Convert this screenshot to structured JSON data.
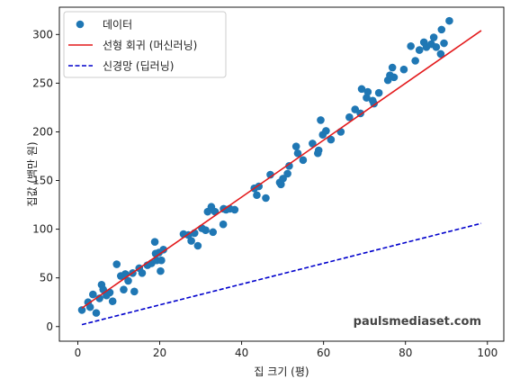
{
  "chart_data": {
    "type": "scatter",
    "xlabel": "집 크기 (평)",
    "ylabel": "집값 (백만 원)",
    "xlim": [
      -4.5,
      104
    ],
    "ylim": [
      -15,
      328
    ],
    "xticks": [
      0,
      20,
      40,
      60,
      80,
      100
    ],
    "yticks": [
      0,
      50,
      100,
      150,
      200,
      250,
      300
    ],
    "grid": false,
    "legend_position": "top-left",
    "series": [
      {
        "name": "데이터",
        "kind": "scatter",
        "color": "#1f77b4",
        "points": [
          [
            1,
            17
          ],
          [
            2.5,
            25
          ],
          [
            3,
            20
          ],
          [
            3.7,
            33
          ],
          [
            4.5,
            14
          ],
          [
            5.3,
            29
          ],
          [
            5.8,
            43
          ],
          [
            6.2,
            38
          ],
          [
            7,
            32
          ],
          [
            7.8,
            35
          ],
          [
            8.5,
            26
          ],
          [
            9.5,
            64
          ],
          [
            10.5,
            52
          ],
          [
            11.2,
            38
          ],
          [
            11.6,
            54
          ],
          [
            12.3,
            47
          ],
          [
            13.4,
            55
          ],
          [
            13.8,
            36
          ],
          [
            15,
            60
          ],
          [
            15.7,
            55
          ],
          [
            17,
            63
          ],
          [
            18,
            65
          ],
          [
            18.8,
            87
          ],
          [
            19,
            75
          ],
          [
            19.3,
            68
          ],
          [
            19.8,
            76
          ],
          [
            20.2,
            57
          ],
          [
            20.4,
            68
          ],
          [
            20.9,
            79
          ],
          [
            25.8,
            95
          ],
          [
            27,
            94
          ],
          [
            27.7,
            88
          ],
          [
            28.5,
            96
          ],
          [
            29.3,
            83
          ],
          [
            30.3,
            101
          ],
          [
            31.2,
            99
          ],
          [
            31.7,
            118
          ],
          [
            32.6,
            123
          ],
          [
            33,
            97
          ],
          [
            33.5,
            118
          ],
          [
            35.5,
            105
          ],
          [
            35.6,
            121
          ],
          [
            36.2,
            120
          ],
          [
            37.1,
            121
          ],
          [
            38.3,
            120
          ],
          [
            43.1,
            142
          ],
          [
            43.7,
            135
          ],
          [
            44.2,
            144
          ],
          [
            45.9,
            132
          ],
          [
            47,
            156
          ],
          [
            49.3,
            148
          ],
          [
            49.6,
            146
          ],
          [
            50.1,
            152
          ],
          [
            51.2,
            157
          ],
          [
            51.6,
            165
          ],
          [
            53.3,
            185
          ],
          [
            53.7,
            178
          ],
          [
            55,
            171
          ],
          [
            57.3,
            188
          ],
          [
            58.6,
            178
          ],
          [
            58.8,
            181
          ],
          [
            59.3,
            212
          ],
          [
            59.8,
            197
          ],
          [
            60.6,
            201
          ],
          [
            61.8,
            192
          ],
          [
            64.2,
            200
          ],
          [
            66.3,
            215
          ],
          [
            67.7,
            223
          ],
          [
            69,
            219
          ],
          [
            69.3,
            244
          ],
          [
            70.5,
            235
          ],
          [
            70.8,
            241
          ],
          [
            72,
            232
          ],
          [
            72.3,
            229
          ],
          [
            73.5,
            240
          ],
          [
            75.7,
            253
          ],
          [
            76.2,
            258
          ],
          [
            76.8,
            266
          ],
          [
            77.2,
            256
          ],
          [
            79.6,
            264
          ],
          [
            81.3,
            288
          ],
          [
            82.4,
            273
          ],
          [
            83.4,
            284
          ],
          [
            84.5,
            292
          ],
          [
            85.1,
            287
          ],
          [
            86.3,
            290
          ],
          [
            86.9,
            297
          ],
          [
            87.5,
            287
          ],
          [
            88.6,
            280
          ],
          [
            88.8,
            305
          ],
          [
            89.4,
            291
          ],
          [
            90.7,
            314
          ]
        ]
      },
      {
        "name": "선형 회귀 (머신러닝)",
        "kind": "line",
        "color": "#e31a1c",
        "dash": "solid",
        "points": [
          [
            1,
            19
          ],
          [
            98.5,
            304
          ]
        ]
      },
      {
        "name": "신경망 (딥러닝)",
        "kind": "line",
        "color": "#0000cc",
        "dash": "dashed",
        "points": [
          [
            1,
            2
          ],
          [
            98.5,
            106
          ]
        ]
      }
    ]
  },
  "watermark": "paulsmediaset.com"
}
